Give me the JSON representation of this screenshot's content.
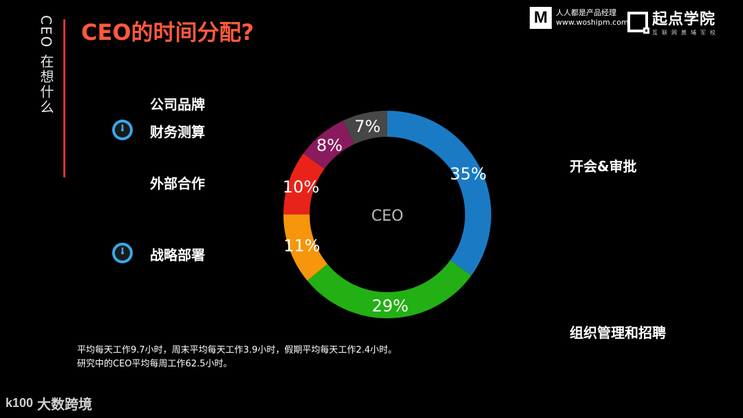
{
  "header": {
    "vertical_title": "CEO 在想什么",
    "title": "CEO的时间分配?"
  },
  "brands": {
    "woshipm_logo": "M",
    "woshipm_name": "人人都是产品经理",
    "woshipm_url": "www.woshipm.com",
    "qidian_name": "起点学院",
    "qidian_sub": "互联网黄埔军校"
  },
  "labels": {
    "brand": "公司品牌",
    "finance": "财务测算",
    "partnership": "外部合作",
    "strategy": "战略部署",
    "meetings": "开会&审批",
    "org": "组织管理和招聘"
  },
  "icons": [
    "clock-icon",
    "clock-icon"
  ],
  "chart_data": {
    "type": "pie",
    "variant": "donut",
    "center_label": "CEO",
    "slices": [
      {
        "label": "开会&审批",
        "value": 35,
        "text": "35%",
        "color": "#1a7bc4"
      },
      {
        "label": "组织管理和招聘",
        "value": 29,
        "text": "29%",
        "color": "#22b014"
      },
      {
        "label": "战略部署",
        "value": 11,
        "text": "11%",
        "color": "#f5960c"
      },
      {
        "label": "外部合作",
        "value": 10,
        "text": "10%",
        "color": "#e8241a"
      },
      {
        "label": "财务测算",
        "value": 8,
        "text": "8%",
        "color": "#8a1a5e"
      },
      {
        "label": "公司品牌",
        "value": 7,
        "text": "7%",
        "color": "#474747"
      }
    ]
  },
  "footnote": {
    "line1": "平均每天工作9.7小时，周末平均每天工作3.9小时，假期平均每天工作2.4小时。",
    "line2": "研究中的CEO平均每周工作62.5小时。"
  },
  "watermark": {
    "logo": "k100",
    "text": "大数跨境"
  }
}
